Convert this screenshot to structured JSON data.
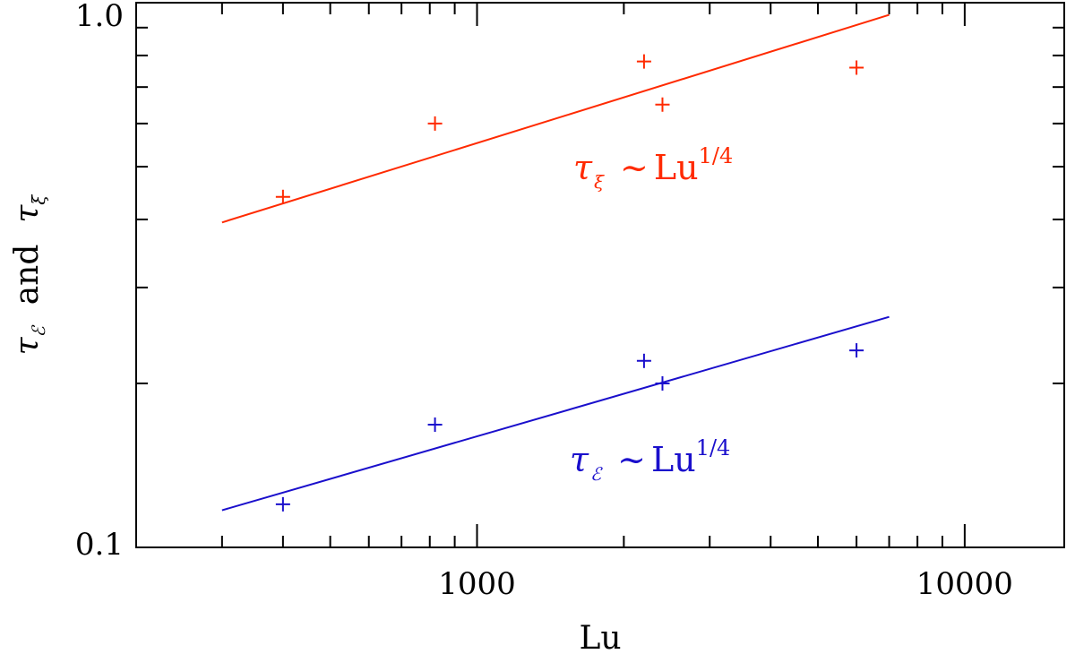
{
  "chart_data": {
    "type": "scatter",
    "x_scale": "log",
    "y_scale": "log",
    "xlim": [
      200,
      16000
    ],
    "ylim": [
      0.1,
      1.0
    ],
    "xlabel": "Lu",
    "ylabel": {
      "sym1": "τ",
      "sub1": "ℰ",
      "word": "and",
      "sym2": "τ",
      "sub2": "ξ"
    },
    "x_ticks": [
      {
        "value": 1000,
        "label": "1000"
      },
      {
        "value": 10000,
        "label": "10000"
      }
    ],
    "y_ticks": [
      {
        "value": 0.1,
        "label": "0.1"
      },
      {
        "value": 1.0,
        "label": "1.0"
      }
    ],
    "x_minor_ticks": [
      300,
      400,
      500,
      600,
      700,
      800,
      900,
      2000,
      3000,
      4000,
      5000,
      6000,
      7000,
      8000,
      9000
    ],
    "y_minor_ticks": [
      0.2,
      0.3,
      0.4,
      0.5,
      0.6,
      0.7,
      0.8,
      0.9
    ],
    "series": [
      {
        "color": "#ff2a00",
        "marker": "plus",
        "points": [
          {
            "x": 400,
            "y": 0.44
          },
          {
            "x": 820,
            "y": 0.6
          },
          {
            "x": 2200,
            "y": 0.78
          },
          {
            "x": 2400,
            "y": 0.65
          },
          {
            "x": 6000,
            "y": 0.76
          }
        ],
        "fit": {
          "x0": 300,
          "y0": 0.395,
          "x1": 7000,
          "y1": 0.95
        },
        "annotation": {
          "sym": "τ",
          "sub": "ξ",
          "rel": "~",
          "base": "Lu",
          "exp": "1/4"
        }
      },
      {
        "color": "#1a0fcc",
        "marker": "plus",
        "points": [
          {
            "x": 400,
            "y": 0.12
          },
          {
            "x": 820,
            "y": 0.168
          },
          {
            "x": 2200,
            "y": 0.22
          },
          {
            "x": 2400,
            "y": 0.2
          },
          {
            "x": 6000,
            "y": 0.23
          }
        ],
        "fit": {
          "x0": 300,
          "y0": 0.117,
          "x1": 7000,
          "y1": 0.265
        },
        "annotation": {
          "sym": "τ",
          "sub": "ℰ",
          "rel": "~",
          "base": "Lu",
          "exp": "1/4"
        }
      }
    ]
  }
}
